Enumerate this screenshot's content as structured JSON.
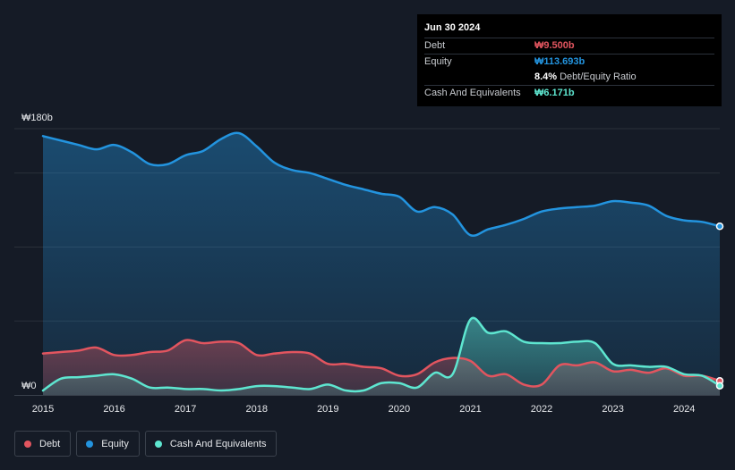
{
  "tooltip": {
    "date": "Jun 30 2024",
    "debt_label": "Debt",
    "debt_value": "₩9.500b",
    "equity_label": "Equity",
    "equity_value": "₩113.693b",
    "ratio_value": "8.4%",
    "ratio_label": "Debt/Equity Ratio",
    "cash_label": "Cash And Equivalents",
    "cash_value": "₩6.171b"
  },
  "legend": {
    "debt": "Debt",
    "equity": "Equity",
    "cash": "Cash And Equivalents"
  },
  "colors": {
    "debt": "#e2555f",
    "equity": "#2394df",
    "cash": "#5ee6d0",
    "background": "#151b26",
    "grid": "#2a303a"
  },
  "chart_data": {
    "type": "area",
    "title": "",
    "xlabel": "",
    "ylabel": "",
    "ylim": [
      0,
      180
    ],
    "y_tick_labels": [
      {
        "value": 180,
        "label": "₩180b"
      },
      {
        "value": 0,
        "label": "₩0"
      }
    ],
    "xlim": [
      2015,
      2024.5
    ],
    "x_ticks": [
      2015,
      2016,
      2017,
      2018,
      2019,
      2020,
      2021,
      2022,
      2023,
      2024
    ],
    "x_tick_labels": [
      "2015",
      "2016",
      "2017",
      "2018",
      "2019",
      "2020",
      "2021",
      "2022",
      "2023",
      "2024"
    ],
    "unit": "₩ billions",
    "series": [
      {
        "name": "Equity",
        "key": "equity",
        "points": [
          [
            2015.0,
            175
          ],
          [
            2015.25,
            172
          ],
          [
            2015.5,
            169
          ],
          [
            2015.75,
            166
          ],
          [
            2016.0,
            169
          ],
          [
            2016.25,
            164
          ],
          [
            2016.5,
            156
          ],
          [
            2016.75,
            156
          ],
          [
            2017.0,
            162
          ],
          [
            2017.25,
            165
          ],
          [
            2017.5,
            173
          ],
          [
            2017.75,
            177
          ],
          [
            2018.0,
            168
          ],
          [
            2018.25,
            157
          ],
          [
            2018.5,
            152
          ],
          [
            2018.75,
            150
          ],
          [
            2019.0,
            146
          ],
          [
            2019.25,
            142
          ],
          [
            2019.5,
            139
          ],
          [
            2019.75,
            136
          ],
          [
            2020.0,
            134
          ],
          [
            2020.25,
            124
          ],
          [
            2020.5,
            127
          ],
          [
            2020.75,
            122
          ],
          [
            2021.0,
            108
          ],
          [
            2021.25,
            112
          ],
          [
            2021.5,
            115
          ],
          [
            2021.75,
            119
          ],
          [
            2022.0,
            124
          ],
          [
            2022.25,
            126
          ],
          [
            2022.5,
            127
          ],
          [
            2022.75,
            128
          ],
          [
            2023.0,
            131
          ],
          [
            2023.25,
            130
          ],
          [
            2023.5,
            128
          ],
          [
            2023.75,
            121
          ],
          [
            2024.0,
            118
          ],
          [
            2024.25,
            117
          ],
          [
            2024.5,
            114
          ]
        ]
      },
      {
        "name": "Debt",
        "key": "debt",
        "points": [
          [
            2015.0,
            28
          ],
          [
            2015.25,
            29
          ],
          [
            2015.5,
            30
          ],
          [
            2015.75,
            32
          ],
          [
            2016.0,
            27
          ],
          [
            2016.25,
            27
          ],
          [
            2016.5,
            29
          ],
          [
            2016.75,
            30
          ],
          [
            2017.0,
            37
          ],
          [
            2017.25,
            35
          ],
          [
            2017.5,
            36
          ],
          [
            2017.75,
            35
          ],
          [
            2018.0,
            27
          ],
          [
            2018.25,
            28
          ],
          [
            2018.5,
            29
          ],
          [
            2018.75,
            28
          ],
          [
            2019.0,
            21
          ],
          [
            2019.25,
            21
          ],
          [
            2019.5,
            19
          ],
          [
            2019.75,
            18
          ],
          [
            2020.0,
            13
          ],
          [
            2020.25,
            14
          ],
          [
            2020.5,
            22
          ],
          [
            2020.75,
            25
          ],
          [
            2021.0,
            23
          ],
          [
            2021.25,
            13
          ],
          [
            2021.5,
            14
          ],
          [
            2021.75,
            7
          ],
          [
            2022.0,
            7
          ],
          [
            2022.25,
            20
          ],
          [
            2022.5,
            20
          ],
          [
            2022.75,
            22
          ],
          [
            2023.0,
            16
          ],
          [
            2023.25,
            17
          ],
          [
            2023.5,
            15
          ],
          [
            2023.75,
            18
          ],
          [
            2024.0,
            13
          ],
          [
            2024.25,
            13
          ],
          [
            2024.5,
            9.5
          ]
        ]
      },
      {
        "name": "Cash And Equivalents",
        "key": "cash",
        "points": [
          [
            2015.0,
            3
          ],
          [
            2015.25,
            11
          ],
          [
            2015.5,
            12
          ],
          [
            2015.75,
            13
          ],
          [
            2016.0,
            14
          ],
          [
            2016.25,
            11
          ],
          [
            2016.5,
            5
          ],
          [
            2016.75,
            5
          ],
          [
            2017.0,
            4
          ],
          [
            2017.25,
            4
          ],
          [
            2017.5,
            3
          ],
          [
            2017.75,
            4
          ],
          [
            2018.0,
            6
          ],
          [
            2018.25,
            6
          ],
          [
            2018.5,
            5
          ],
          [
            2018.75,
            4
          ],
          [
            2019.0,
            7
          ],
          [
            2019.25,
            3
          ],
          [
            2019.5,
            3
          ],
          [
            2019.75,
            8
          ],
          [
            2020.0,
            8
          ],
          [
            2020.25,
            5
          ],
          [
            2020.5,
            15
          ],
          [
            2020.75,
            14
          ],
          [
            2021.0,
            51
          ],
          [
            2021.25,
            42
          ],
          [
            2021.5,
            43
          ],
          [
            2021.75,
            36
          ],
          [
            2022.0,
            35
          ],
          [
            2022.25,
            35
          ],
          [
            2022.5,
            36
          ],
          [
            2022.75,
            35
          ],
          [
            2023.0,
            21
          ],
          [
            2023.25,
            20
          ],
          [
            2023.5,
            19
          ],
          [
            2023.75,
            19
          ],
          [
            2024.0,
            14
          ],
          [
            2024.25,
            13
          ],
          [
            2024.5,
            6.2
          ]
        ]
      }
    ]
  }
}
